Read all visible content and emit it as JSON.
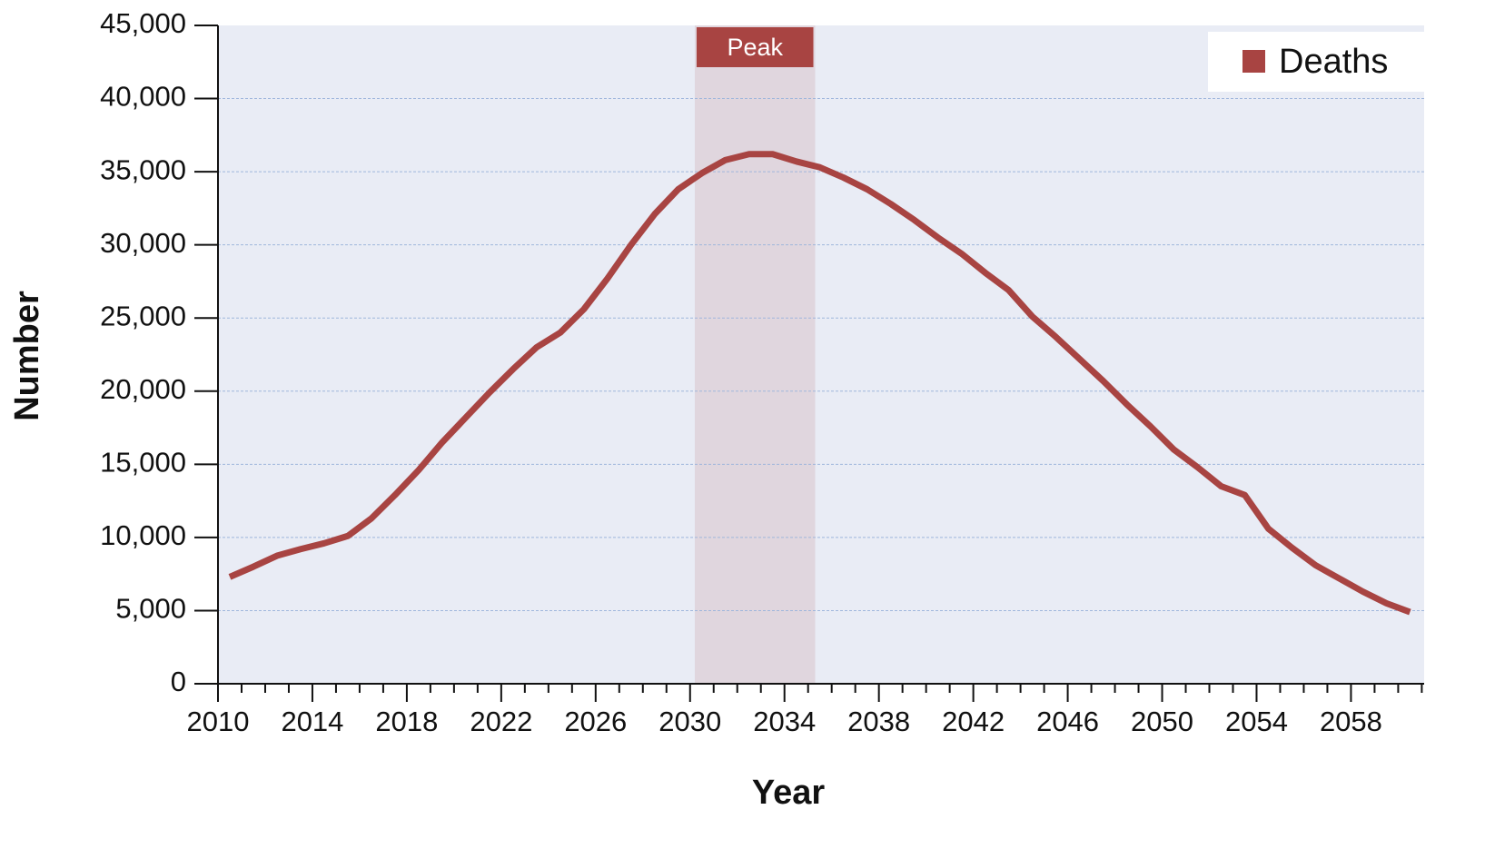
{
  "chart_data": {
    "type": "line",
    "x_label": "Year",
    "y_label": "Number",
    "x": [
      2010.5,
      2011.5,
      2012.5,
      2013.5,
      2014.5,
      2015.5,
      2016.5,
      2017.5,
      2018.5,
      2019.5,
      2020.5,
      2021.5,
      2022.5,
      2023.5,
      2024.5,
      2025.5,
      2026.5,
      2027.5,
      2028.5,
      2029.5,
      2030.5,
      2031.5,
      2032.5,
      2033.5,
      2034.5,
      2035.5,
      2036.5,
      2037.5,
      2038.5,
      2039.5,
      2040.5,
      2041.5,
      2042.5,
      2043.5,
      2044.5,
      2045.5,
      2046.5,
      2047.5,
      2048.5,
      2049.5,
      2050.5,
      2051.5,
      2052.5,
      2053.5,
      2054.5,
      2055.5,
      2056.5,
      2057.5,
      2058.5,
      2059.5,
      2060.5
    ],
    "series": [
      {
        "name": "Deaths",
        "color": "#a84442",
        "values": [
          7300,
          8000,
          8750,
          9200,
          9600,
          10100,
          11300,
          12900,
          14600,
          16500,
          18200,
          19900,
          21500,
          23000,
          24000,
          25600,
          27700,
          30000,
          32100,
          33800,
          34900,
          35800,
          36200,
          36200,
          35700,
          35300,
          34600,
          33800,
          32800,
          31700,
          30500,
          29400,
          28100,
          26900,
          25100,
          23700,
          22200,
          20700,
          19100,
          17600,
          16000,
          14800,
          13500,
          12900,
          10600,
          9300,
          8100,
          7200,
          6300,
          5500,
          4900
        ]
      }
    ],
    "xlim": [
      2010,
      2061.1
    ],
    "xticks": [
      2010,
      2014,
      2018,
      2022,
      2026,
      2030,
      2034,
      2038,
      2042,
      2046,
      2050,
      2054,
      2058
    ],
    "ylim": [
      0,
      45000
    ],
    "yticks": [
      0,
      {
        "value": 5000,
        "label": "5,000"
      },
      {
        "value": 10000,
        "label": "10,000"
      },
      {
        "value": 15000,
        "label": "15,000"
      },
      {
        "value": 20000,
        "label": "20,000"
      },
      {
        "value": 25000,
        "label": "25,000"
      },
      {
        "value": 30000,
        "label": "30,000"
      },
      {
        "value": 35000,
        "label": "35,000"
      },
      {
        "value": 40000,
        "label": "40,000"
      },
      {
        "value": 45000,
        "label": "45,000"
      }
    ],
    "grid": true,
    "legend": "top-right",
    "highlight": {
      "label": "Peak",
      "range": [
        2030.2,
        2035.3
      ],
      "color": "#a84442"
    }
  }
}
